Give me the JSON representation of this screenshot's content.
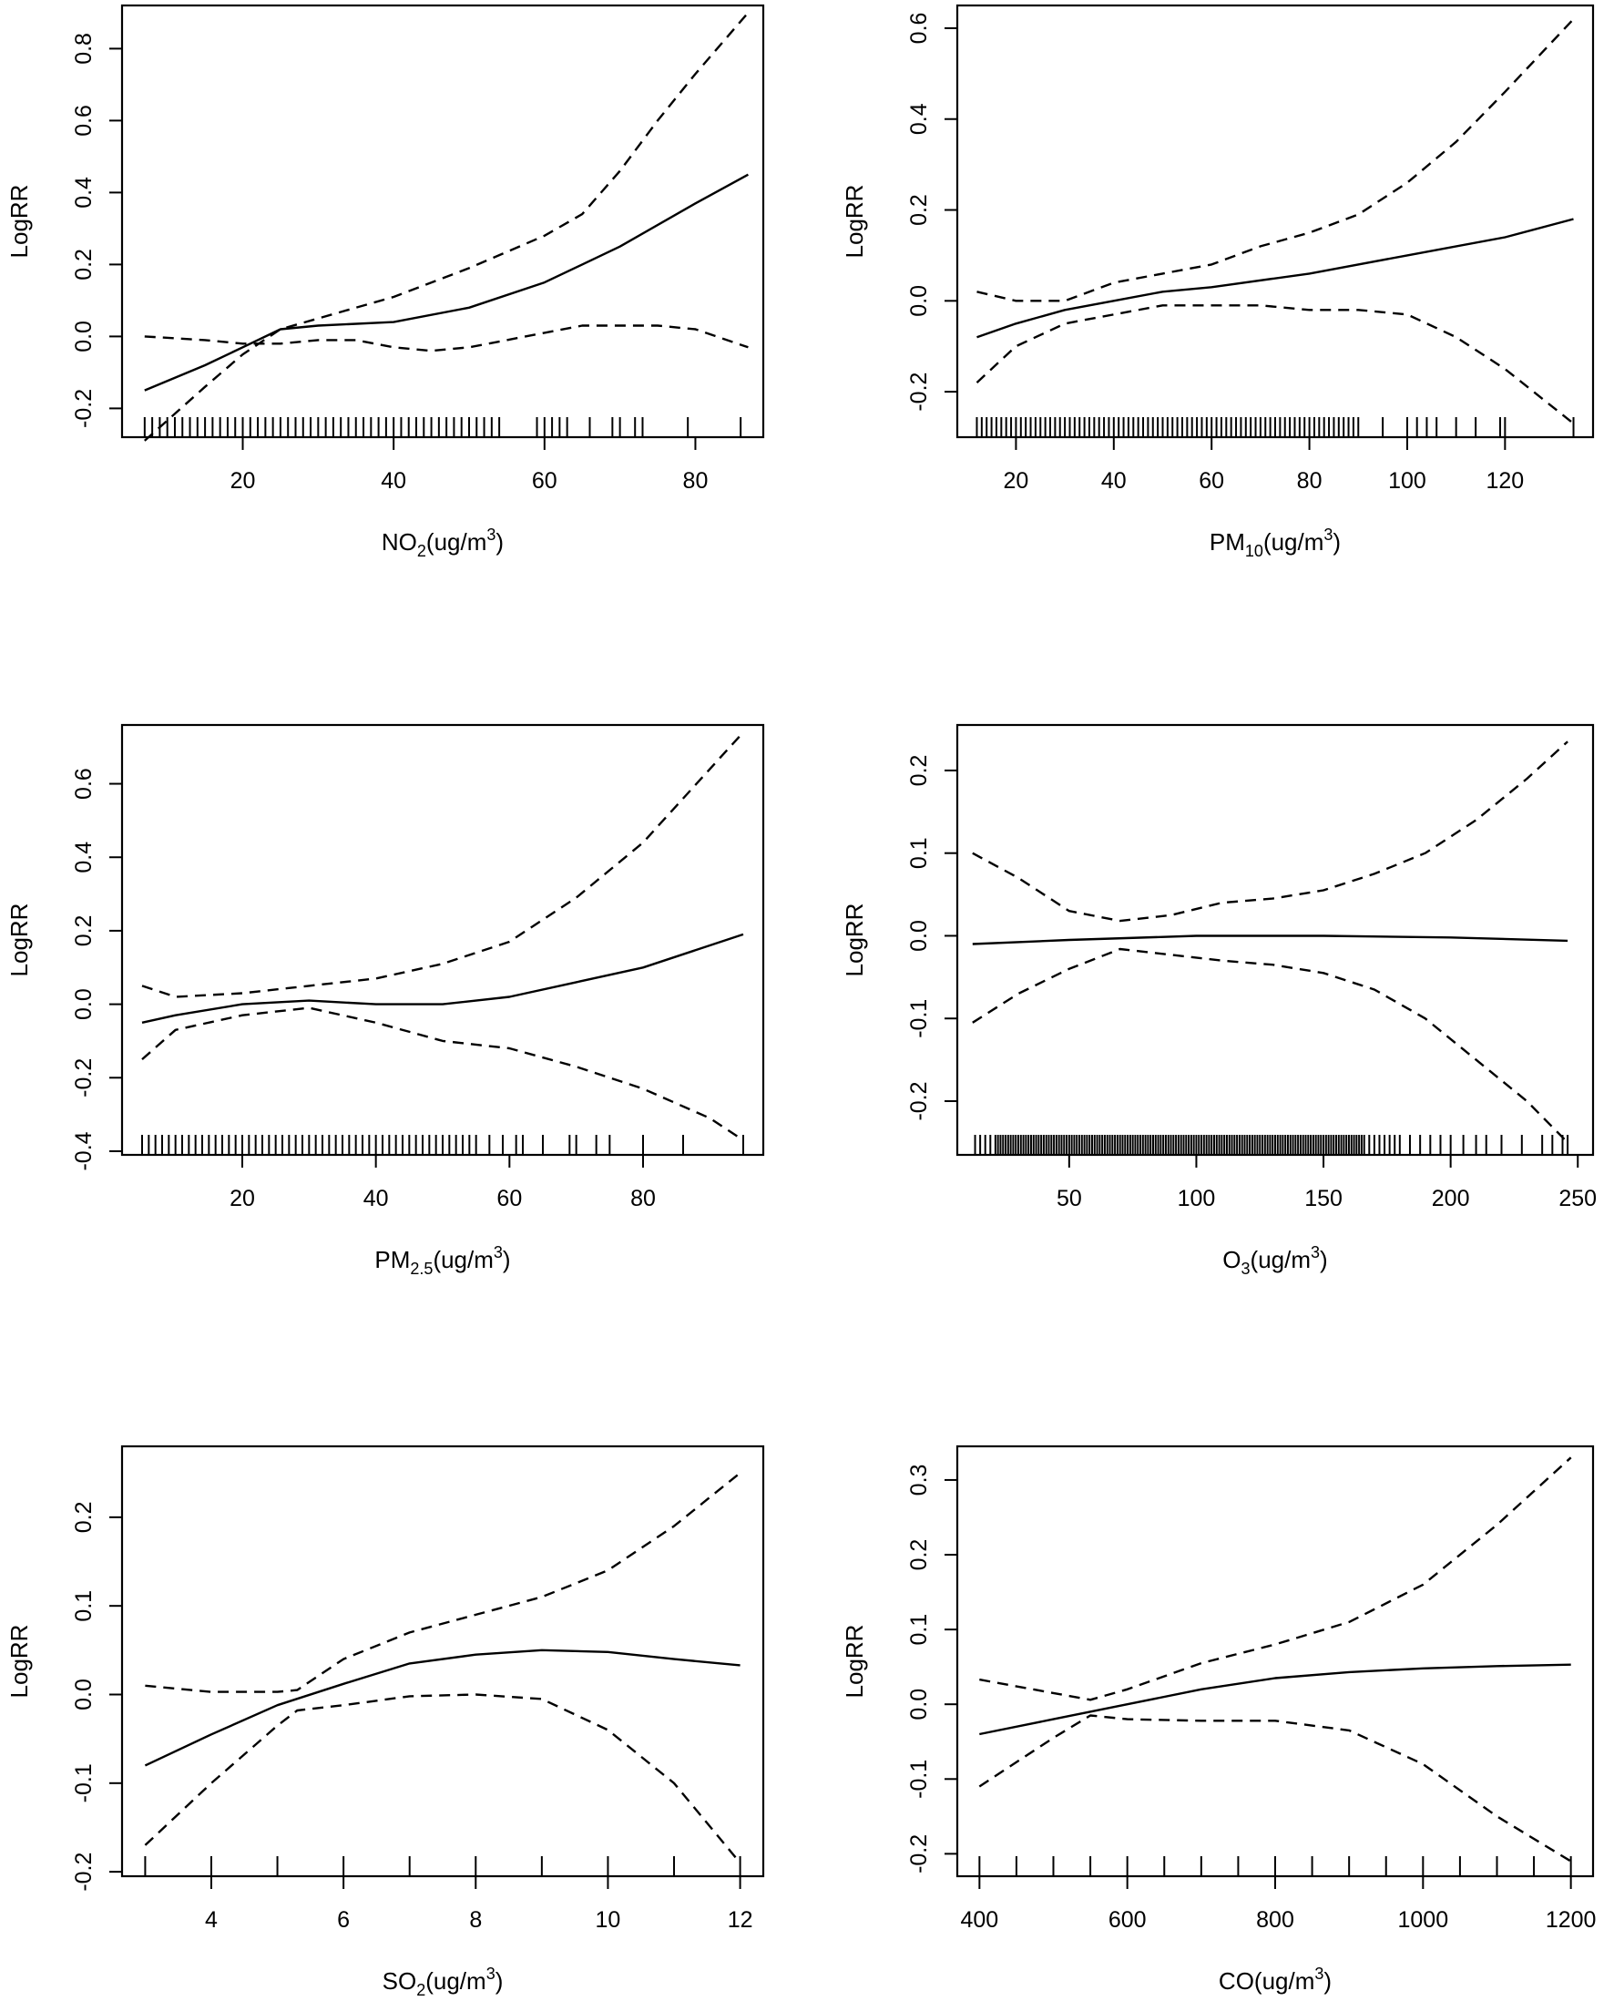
{
  "chart_data": [
    {
      "type": "line",
      "ylabel": "LogRR",
      "xlabel_main": "NO",
      "xlabel_sub": "2",
      "xlabel_tail": "(ug/m",
      "xlabel_sup": "3",
      "xlabel_end": ")",
      "xlim": [
        4,
        89
      ],
      "ylim": [
        -0.28,
        0.92
      ],
      "xticks": [
        20,
        40,
        60,
        80
      ],
      "yticks": [
        -0.2,
        0.0,
        0.2,
        0.4,
        0.6,
        0.8
      ],
      "yticklabels": [
        "-0.2",
        "0.0",
        "0.2",
        "0.4",
        "0.6",
        "0.8"
      ],
      "series": [
        {
          "style": "solid",
          "x": [
            7,
            15,
            20,
            25,
            30,
            40,
            50,
            60,
            70,
            80,
            87
          ],
          "y": [
            -0.15,
            -0.08,
            -0.03,
            0.02,
            0.03,
            0.04,
            0.08,
            0.15,
            0.25,
            0.37,
            0.45
          ]
        },
        {
          "style": "dashed",
          "x": [
            7,
            15,
            20,
            25,
            30,
            40,
            50,
            60,
            65,
            70,
            75,
            80,
            87
          ],
          "y": [
            -0.29,
            -0.14,
            -0.05,
            0.02,
            0.05,
            0.11,
            0.19,
            0.28,
            0.34,
            0.46,
            0.6,
            0.73,
            0.9
          ]
        },
        {
          "style": "dashed",
          "x": [
            7,
            15,
            20,
            25,
            30,
            35,
            40,
            45,
            50,
            55,
            60,
            65,
            70,
            75,
            80,
            87
          ],
          "y": [
            0.0,
            -0.01,
            -0.02,
            -0.02,
            -0.01,
            -0.01,
            -0.03,
            -0.04,
            -0.03,
            -0.01,
            0.01,
            0.03,
            0.03,
            0.03,
            0.02,
            -0.03
          ]
        }
      ],
      "rug": [
        7,
        8,
        9,
        10,
        11,
        12,
        13,
        14,
        15,
        16,
        17,
        18,
        19,
        20,
        21,
        22,
        23,
        24,
        25,
        26,
        27,
        28,
        29,
        30,
        31,
        32,
        33,
        34,
        35,
        36,
        37,
        38,
        39,
        40,
        41,
        42,
        43,
        44,
        45,
        46,
        47,
        48,
        49,
        50,
        51,
        52,
        53,
        54,
        59,
        60,
        61,
        62,
        63,
        66,
        69,
        70,
        72,
        73,
        79,
        86
      ]
    },
    {
      "type": "line",
      "ylabel": "LogRR",
      "xlabel_main": "PM",
      "xlabel_sub": "10",
      "xlabel_tail": "(ug/m",
      "xlabel_sup": "3",
      "xlabel_end": ")",
      "xlim": [
        8,
        138
      ],
      "ylim": [
        -0.3,
        0.65
      ],
      "xticks": [
        20,
        40,
        60,
        80,
        100,
        120
      ],
      "yticks": [
        -0.2,
        0.0,
        0.2,
        0.4,
        0.6
      ],
      "yticklabels": [
        "-0.2",
        "0.0",
        "0.2",
        "0.4",
        "0.6"
      ],
      "series": [
        {
          "style": "solid",
          "x": [
            12,
            20,
            30,
            40,
            50,
            60,
            80,
            100,
            120,
            134
          ],
          "y": [
            -0.08,
            -0.05,
            -0.02,
            0.0,
            0.02,
            0.03,
            0.06,
            0.1,
            0.14,
            0.18
          ]
        },
        {
          "style": "dashed",
          "x": [
            12,
            20,
            30,
            40,
            50,
            60,
            70,
            80,
            90,
            100,
            110,
            120,
            134
          ],
          "y": [
            0.02,
            0.0,
            0.0,
            0.04,
            0.06,
            0.08,
            0.12,
            0.15,
            0.19,
            0.26,
            0.35,
            0.46,
            0.62
          ]
        },
        {
          "style": "dashed",
          "x": [
            12,
            20,
            30,
            40,
            50,
            60,
            70,
            80,
            90,
            100,
            110,
            120,
            134
          ],
          "y": [
            -0.18,
            -0.1,
            -0.05,
            -0.03,
            -0.01,
            -0.01,
            -0.01,
            -0.02,
            -0.02,
            -0.03,
            -0.08,
            -0.15,
            -0.27
          ]
        }
      ],
      "rug": [
        12,
        13,
        14,
        15,
        16,
        17,
        18,
        19,
        20,
        21,
        22,
        23,
        24,
        25,
        26,
        27,
        28,
        29,
        30,
        31,
        32,
        33,
        34,
        35,
        36,
        37,
        38,
        39,
        40,
        41,
        42,
        43,
        44,
        45,
        46,
        47,
        48,
        49,
        50,
        51,
        52,
        53,
        54,
        55,
        56,
        57,
        58,
        59,
        60,
        61,
        62,
        63,
        64,
        65,
        66,
        67,
        68,
        69,
        70,
        71,
        72,
        73,
        74,
        75,
        76,
        77,
        78,
        79,
        80,
        81,
        82,
        83,
        84,
        85,
        86,
        87,
        88,
        89,
        90,
        95,
        100,
        102,
        104,
        106,
        110,
        114,
        119,
        120,
        134
      ]
    },
    {
      "type": "line",
      "ylabel": "LogRR",
      "xlabel_main": "PM",
      "xlabel_sub": "2.5",
      "xlabel_tail": "(ug/m",
      "xlabel_sup": "3",
      "xlabel_end": ")",
      "xlim": [
        2,
        98
      ],
      "ylim": [
        -0.41,
        0.76
      ],
      "xticks": [
        20,
        40,
        60,
        80
      ],
      "yticks": [
        -0.4,
        -0.2,
        0.0,
        0.2,
        0.4,
        0.6
      ],
      "yticklabels": [
        "-0.4",
        "-0.2",
        "0.0",
        "0.2",
        "0.4",
        "0.6"
      ],
      "series": [
        {
          "style": "solid",
          "x": [
            5,
            10,
            20,
            30,
            40,
            50,
            60,
            70,
            80,
            95
          ],
          "y": [
            -0.05,
            -0.03,
            0.0,
            0.01,
            0.0,
            0.0,
            0.02,
            0.06,
            0.1,
            0.19
          ]
        },
        {
          "style": "dashed",
          "x": [
            5,
            10,
            20,
            30,
            40,
            50,
            60,
            70,
            80,
            90,
            95
          ],
          "y": [
            0.05,
            0.02,
            0.03,
            0.05,
            0.07,
            0.11,
            0.17,
            0.29,
            0.44,
            0.64,
            0.74
          ]
        },
        {
          "style": "dashed",
          "x": [
            5,
            10,
            20,
            30,
            40,
            50,
            60,
            70,
            80,
            90,
            95
          ],
          "y": [
            -0.15,
            -0.07,
            -0.03,
            -0.01,
            -0.05,
            -0.1,
            -0.12,
            -0.17,
            -0.23,
            -0.31,
            -0.37
          ]
        }
      ],
      "rug": [
        5,
        6,
        7,
        8,
        9,
        10,
        11,
        12,
        13,
        14,
        15,
        16,
        17,
        18,
        19,
        20,
        21,
        22,
        23,
        24,
        25,
        26,
        27,
        28,
        29,
        30,
        31,
        32,
        33,
        34,
        35,
        36,
        37,
        38,
        39,
        40,
        41,
        42,
        43,
        44,
        45,
        46,
        47,
        48,
        49,
        50,
        51,
        52,
        53,
        54,
        55,
        57,
        59,
        61,
        62,
        65,
        69,
        70,
        73,
        75,
        80,
        86,
        95
      ]
    },
    {
      "type": "line",
      "ylabel": "LogRR",
      "xlabel_main": "O",
      "xlabel_sub": "3",
      "xlabel_tail": "(ug/m",
      "xlabel_sup": "3",
      "xlabel_end": ")",
      "xlim": [
        6,
        256
      ],
      "ylim": [
        -0.265,
        0.255
      ],
      "xticks": [
        50,
        100,
        150,
        200,
        250
      ],
      "yticks": [
        -0.2,
        -0.1,
        0.0,
        0.1,
        0.2
      ],
      "yticklabels": [
        "-0.2",
        "-0.1",
        "0.0",
        "0.1",
        "0.2"
      ],
      "series": [
        {
          "style": "solid",
          "x": [
            12,
            50,
            100,
            150,
            200,
            246
          ],
          "y": [
            -0.01,
            -0.005,
            0.0,
            0.0,
            -0.002,
            -0.006
          ]
        },
        {
          "style": "dashed",
          "x": [
            12,
            30,
            50,
            70,
            90,
            110,
            130,
            150,
            170,
            190,
            210,
            230,
            246
          ],
          "y": [
            0.1,
            0.07,
            0.03,
            0.018,
            0.025,
            0.04,
            0.045,
            0.055,
            0.075,
            0.1,
            0.14,
            0.19,
            0.235
          ]
        },
        {
          "style": "dashed",
          "x": [
            12,
            30,
            50,
            70,
            90,
            110,
            130,
            150,
            170,
            190,
            210,
            230,
            246
          ],
          "y": [
            -0.105,
            -0.07,
            -0.04,
            -0.016,
            -0.023,
            -0.03,
            -0.035,
            -0.045,
            -0.065,
            -0.1,
            -0.15,
            -0.2,
            -0.25
          ]
        }
      ],
      "rug": [
        13,
        15,
        17,
        19,
        21,
        22,
        23,
        24,
        25,
        26,
        27,
        28,
        29,
        30,
        31,
        32,
        33,
        34,
        35,
        36,
        37,
        38,
        39,
        40,
        41,
        42,
        43,
        44,
        45,
        46,
        47,
        48,
        49,
        50,
        51,
        52,
        53,
        54,
        55,
        56,
        57,
        58,
        59,
        60,
        61,
        62,
        63,
        64,
        65,
        66,
        67,
        68,
        69,
        70,
        71,
        72,
        73,
        74,
        75,
        76,
        77,
        78,
        79,
        80,
        81,
        82,
        83,
        84,
        85,
        86,
        87,
        88,
        89,
        90,
        91,
        92,
        93,
        94,
        95,
        96,
        97,
        98,
        99,
        100,
        101,
        102,
        103,
        104,
        105,
        106,
        107,
        108,
        109,
        110,
        111,
        112,
        113,
        114,
        115,
        116,
        117,
        118,
        119,
        120,
        121,
        122,
        123,
        124,
        125,
        126,
        127,
        128,
        129,
        130,
        131,
        132,
        133,
        134,
        135,
        136,
        137,
        138,
        139,
        140,
        141,
        142,
        143,
        144,
        145,
        146,
        147,
        148,
        149,
        150,
        151,
        152,
        153,
        154,
        155,
        156,
        157,
        158,
        159,
        160,
        161,
        162,
        163,
        164,
        165,
        166,
        168,
        170,
        172,
        174,
        176,
        178,
        180,
        184,
        188,
        192,
        196,
        200,
        205,
        210,
        214,
        220,
        228,
        236,
        240,
        244,
        246
      ]
    },
    {
      "type": "line",
      "ylabel": "LogRR",
      "xlabel_main": "SO",
      "xlabel_sub": "2",
      "xlabel_tail": "(ug/m",
      "xlabel_sup": "3",
      "xlabel_end": ")",
      "xlim": [
        2.65,
        12.35
      ],
      "ylim": [
        -0.205,
        0.28
      ],
      "xticks": [
        4,
        6,
        8,
        10,
        12
      ],
      "yticks": [
        -0.2,
        -0.1,
        0.0,
        0.1,
        0.2
      ],
      "yticklabels": [
        "-0.2",
        "-0.1",
        "0.0",
        "0.1",
        "0.2"
      ],
      "series": [
        {
          "style": "solid",
          "x": [
            3,
            4,
            5,
            6,
            7,
            8,
            9,
            10,
            11,
            12
          ],
          "y": [
            -0.08,
            -0.045,
            -0.012,
            0.012,
            0.035,
            0.045,
            0.05,
            0.048,
            0.04,
            0.033
          ]
        },
        {
          "style": "dashed",
          "x": [
            3,
            4,
            5,
            5.3,
            6,
            7,
            8,
            9,
            10,
            11,
            12
          ],
          "y": [
            0.01,
            0.003,
            0.003,
            0.005,
            0.04,
            0.07,
            0.09,
            0.11,
            0.14,
            0.19,
            0.25
          ]
        },
        {
          "style": "dashed",
          "x": [
            3,
            4,
            5,
            5.3,
            6,
            7,
            8,
            9,
            10,
            11,
            12
          ],
          "y": [
            -0.17,
            -0.1,
            -0.035,
            -0.018,
            -0.012,
            -0.002,
            0.0,
            -0.005,
            -0.04,
            -0.1,
            -0.19
          ]
        }
      ],
      "rug": [
        3,
        4,
        5,
        6,
        7,
        8,
        9,
        10,
        11,
        12
      ]
    },
    {
      "type": "line",
      "ylabel": "LogRR",
      "xlabel_main": "CO",
      "xlabel_sub": "",
      "xlabel_tail": "(ug/m",
      "xlabel_sup": "3",
      "xlabel_end": ")",
      "xlim": [
        370,
        1230
      ],
      "ylim": [
        -0.23,
        0.345
      ],
      "xticks": [
        400,
        600,
        800,
        1000,
        1200
      ],
      "yticks": [
        -0.2,
        -0.1,
        0.0,
        0.1,
        0.2,
        0.3
      ],
      "yticklabels": [
        "-0.2",
        "-0.1",
        "0.0",
        "0.1",
        "0.2",
        "0.3"
      ],
      "series": [
        {
          "style": "solid",
          "x": [
            400,
            500,
            600,
            700,
            800,
            900,
            1000,
            1100,
            1200
          ],
          "y": [
            -0.04,
            -0.02,
            0.0,
            0.02,
            0.035,
            0.043,
            0.048,
            0.051,
            0.053
          ]
        },
        {
          "style": "dashed",
          "x": [
            400,
            500,
            550,
            600,
            700,
            800,
            900,
            1000,
            1100,
            1200
          ],
          "y": [
            0.033,
            0.015,
            0.006,
            0.02,
            0.055,
            0.08,
            0.11,
            0.16,
            0.24,
            0.33
          ]
        },
        {
          "style": "dashed",
          "x": [
            400,
            500,
            550,
            600,
            700,
            800,
            900,
            1000,
            1100,
            1200
          ],
          "y": [
            -0.11,
            -0.045,
            -0.015,
            -0.02,
            -0.022,
            -0.022,
            -0.035,
            -0.08,
            -0.15,
            -0.21
          ]
        }
      ],
      "rug": [
        400,
        450,
        500,
        550,
        600,
        650,
        700,
        750,
        800,
        850,
        900,
        950,
        1000,
        1050,
        1100,
        1150,
        1200
      ]
    }
  ]
}
